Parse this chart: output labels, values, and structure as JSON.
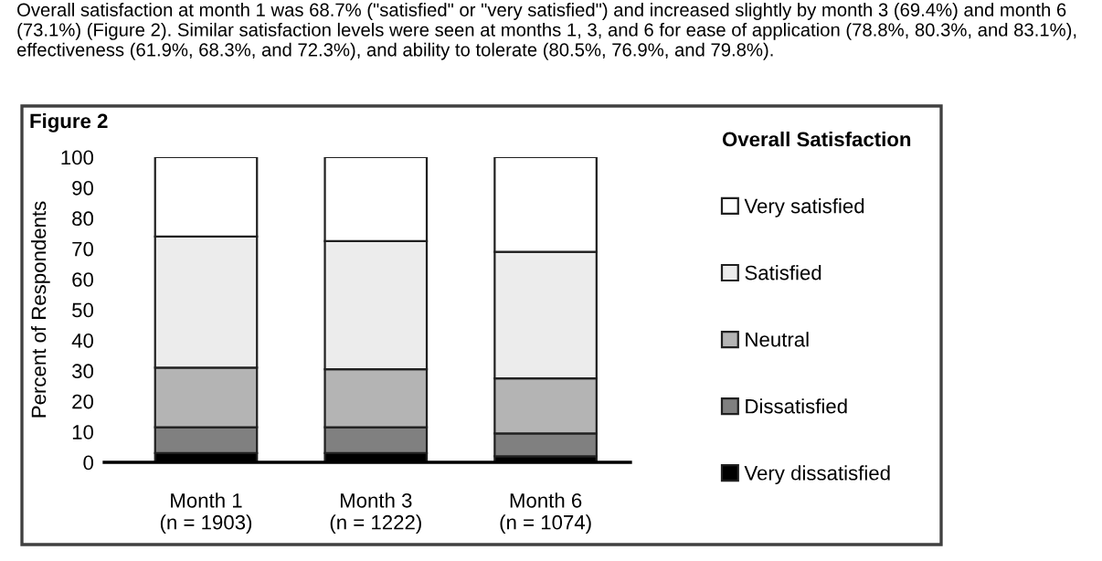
{
  "chart_data": {
    "type": "bar",
    "stacked": true,
    "title": "Figure 2",
    "ylabel": "Percent of Respondents",
    "legend_title": "Overall Satisfaction",
    "annotations": [
      "Overall satisfaction at month 1 was 68.7% (\"satisfied\" or \"very satisfied\") and increased slightly by month 3 (69.4%) and month 6 (73.1%) (Figure 2). Similar satisfaction levels were seen at months 1, 3, and 6 for ease of application (78.8%, 80.3%, and 83.1%), effectiveness (61.9%, 68.3%, and 72.3%), and ability to tolerate (80.5%, 76.9%, and 79.8%)."
    ],
    "categories": [
      "Month 1\n(n = 1903)",
      "Month 3\n(n = 1222)",
      "Month 6\n(n = 1074)"
    ],
    "series": [
      {
        "name": "Very dissatisfied",
        "color": "#000000",
        "values": [
          3,
          3,
          2
        ]
      },
      {
        "name": "Dissatisfied",
        "color": "#808080",
        "values": [
          8.5,
          8.5,
          7.5
        ]
      },
      {
        "name": "Neutral",
        "color": "#b4b4b4",
        "values": [
          19.5,
          19,
          18
        ]
      },
      {
        "name": "Satisfied",
        "color": "#ececec",
        "values": [
          43,
          42,
          41.5
        ]
      },
      {
        "name": "Very satisfied",
        "color": "#ffffff",
        "values": [
          26,
          27.5,
          31
        ]
      }
    ],
    "ylim": [
      0,
      100
    ],
    "yticks": [
      0,
      10,
      20,
      30,
      40,
      50,
      60,
      70,
      80,
      90,
      100
    ],
    "grid": false,
    "legend": "right"
  }
}
